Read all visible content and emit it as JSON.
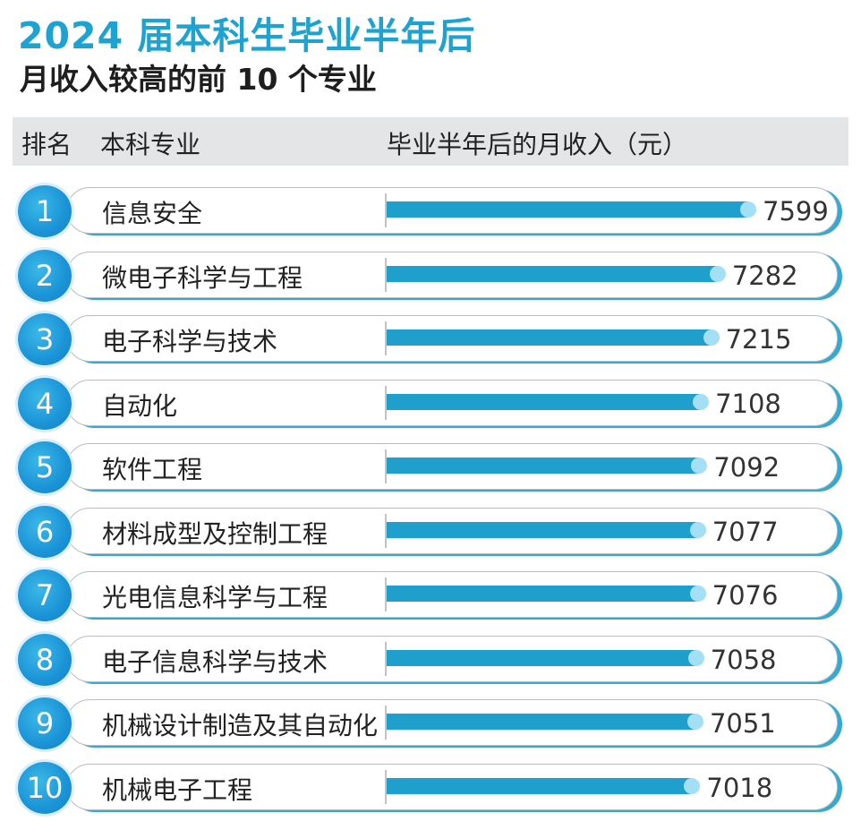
{
  "chart_data": {
    "type": "bar",
    "title": "2024 届本科生毕业半年后",
    "subtitle": "月收入较高的前 10 个专业",
    "columns": [
      "排名",
      "本科专业",
      "毕业半年后的月收入（元）"
    ],
    "ranks": [
      "1",
      "2",
      "3",
      "4",
      "5",
      "6",
      "7",
      "8",
      "9",
      "10"
    ],
    "categories": [
      "信息安全",
      "微电子科学与工程",
      "电子科学与技术",
      "自动化",
      "软件工程",
      "材料成型及控制工程",
      "光电信息科学与工程",
      "电子信息科学与技术",
      "机械设计制造及其自动化",
      "机械电子工程"
    ],
    "values": [
      7599,
      7282,
      7215,
      7108,
      7092,
      7077,
      7076,
      7058,
      7051,
      7018
    ],
    "value_labels": [
      "7599",
      "7282",
      "7215",
      "7108",
      "7092",
      "7077",
      "7076",
      "7058",
      "7051",
      "7018"
    ],
    "colors": {
      "bar": "#1e9fcc",
      "rank_circle": "#1a93d6",
      "title": "#1ea2cf"
    }
  }
}
